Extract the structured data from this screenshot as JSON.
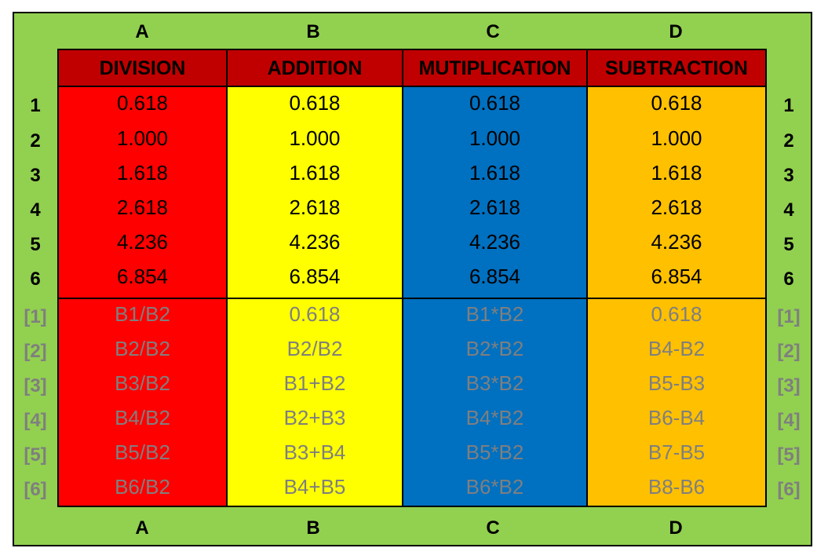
{
  "colors": {
    "background": "#92d050",
    "header": "#c00000",
    "division": "#ff0000",
    "addition": "#ffff00",
    "multiplication": "#0070c0",
    "subtraction": "#ffc000",
    "formula_text": "#7f7f7f"
  },
  "column_letters": [
    "A",
    "B",
    "C",
    "D"
  ],
  "row_numbers": [
    "1",
    "2",
    "3",
    "4",
    "5",
    "6"
  ],
  "formula_row_labels": [
    "[1]",
    "[2]",
    "[3]",
    "[4]",
    "[5]",
    "[6]"
  ],
  "columns": [
    {
      "header": "DIVISION",
      "values": [
        "0.618",
        "1.000",
        "1.618",
        "2.618",
        "4.236",
        "6.854"
      ],
      "formulas": [
        "B1/B2",
        "B2/B2",
        "B3/B2",
        "B4/B2",
        "B5/B2",
        "B6/B2"
      ]
    },
    {
      "header": "ADDITION",
      "values": [
        "0.618",
        "1.000",
        "1.618",
        "2.618",
        "4.236",
        "6.854"
      ],
      "formulas": [
        "0.618",
        "B2/B2",
        "B1+B2",
        "B2+B3",
        "B3+B4",
        "B4+B5"
      ]
    },
    {
      "header": "MUTIPLICATION",
      "values": [
        "0.618",
        "1.000",
        "1.618",
        "2.618",
        "4.236",
        "6.854"
      ],
      "formulas": [
        "B1*B2",
        "B2*B2",
        "B3*B2",
        "B4*B2",
        "B5*B2",
        "B6*B2"
      ]
    },
    {
      "header": "SUBTRACTION",
      "values": [
        "0.618",
        "1.000",
        "1.618",
        "2.618",
        "4.236",
        "6.854"
      ],
      "formulas": [
        "0.618",
        "B4-B2",
        "B5-B3",
        "B6-B4",
        "B7-B5",
        "B8-B6"
      ]
    }
  ]
}
